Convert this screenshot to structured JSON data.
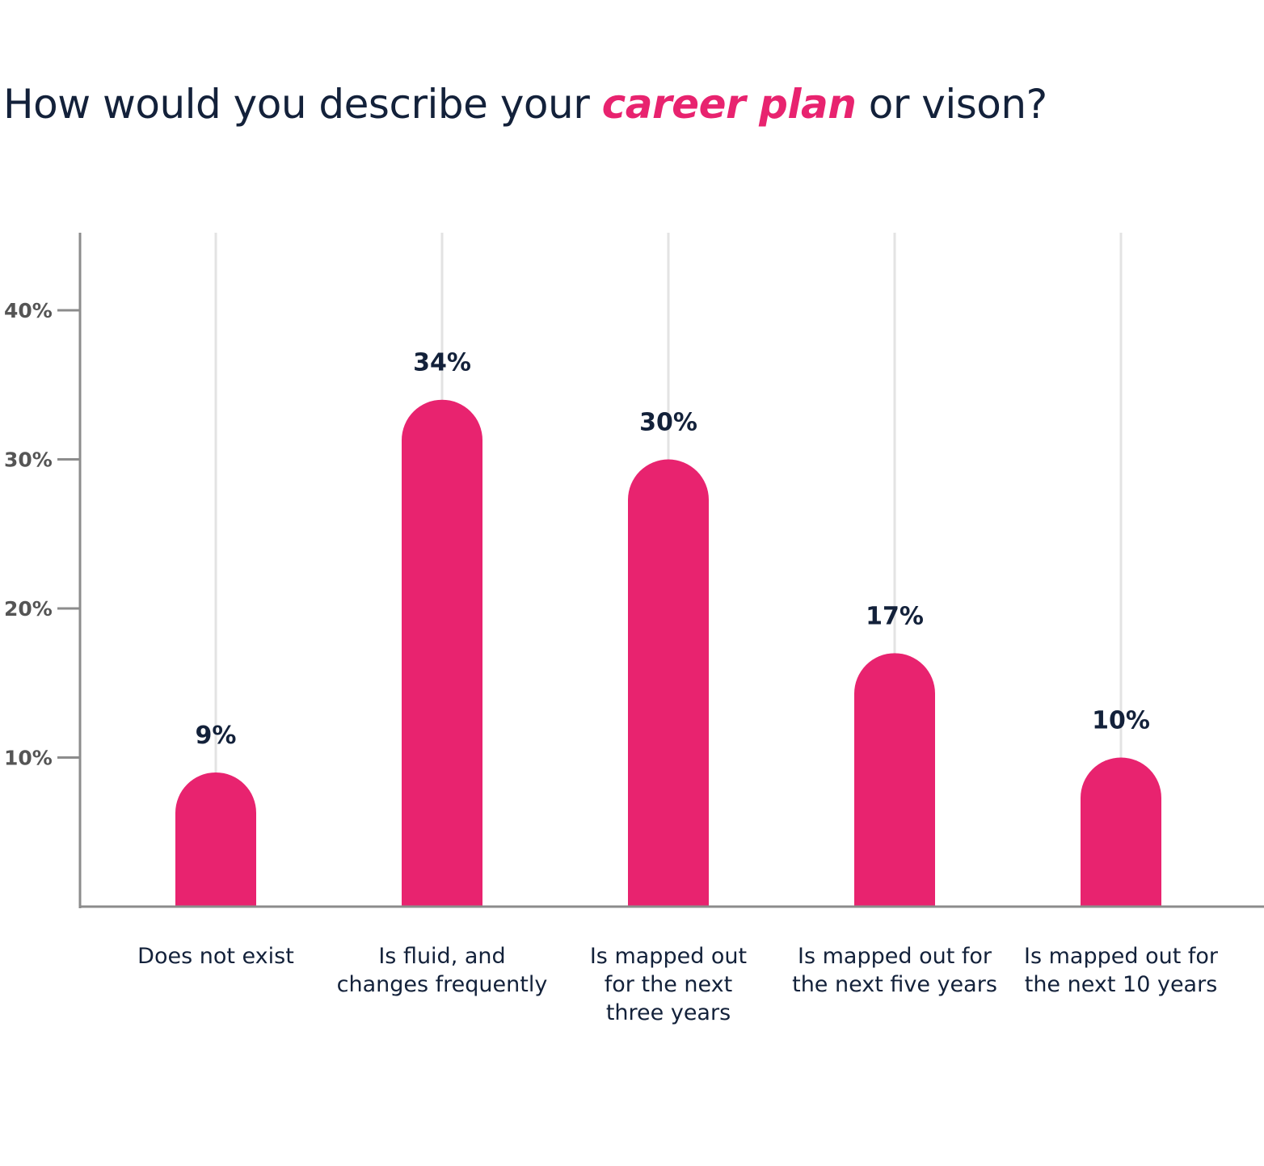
{
  "title": {
    "before": "How would you describe your ",
    "highlight": "career plan",
    "after": " or vison?"
  },
  "colors": {
    "bar": "#e8236f",
    "text": "#13213a",
    "axis": "#8c8c8c",
    "gridline": "#e3e3e3",
    "tick_label": "#555555"
  },
  "chart_data": {
    "type": "bar",
    "title": "How would you describe your career plan or vison?",
    "categories": [
      [
        "Does not exist"
      ],
      [
        "Is fluid, and",
        "changes frequently"
      ],
      [
        "Is mapped out",
        "for the next",
        "three years"
      ],
      [
        "Is mapped out for",
        "the next five years"
      ],
      [
        "Is mapped out for",
        "the next 10 years"
      ]
    ],
    "values": [
      9,
      34,
      30,
      17,
      10
    ],
    "value_labels": [
      "9%",
      "34%",
      "30%",
      "17%",
      "10%"
    ],
    "yticks": [
      10,
      20,
      30,
      40
    ],
    "ytick_labels": [
      "10%",
      "20%",
      "30%",
      "40%"
    ],
    "ylim": [
      0,
      40
    ],
    "xlabel": "",
    "ylabel": "",
    "grid": "vertical lines behind each bar"
  }
}
